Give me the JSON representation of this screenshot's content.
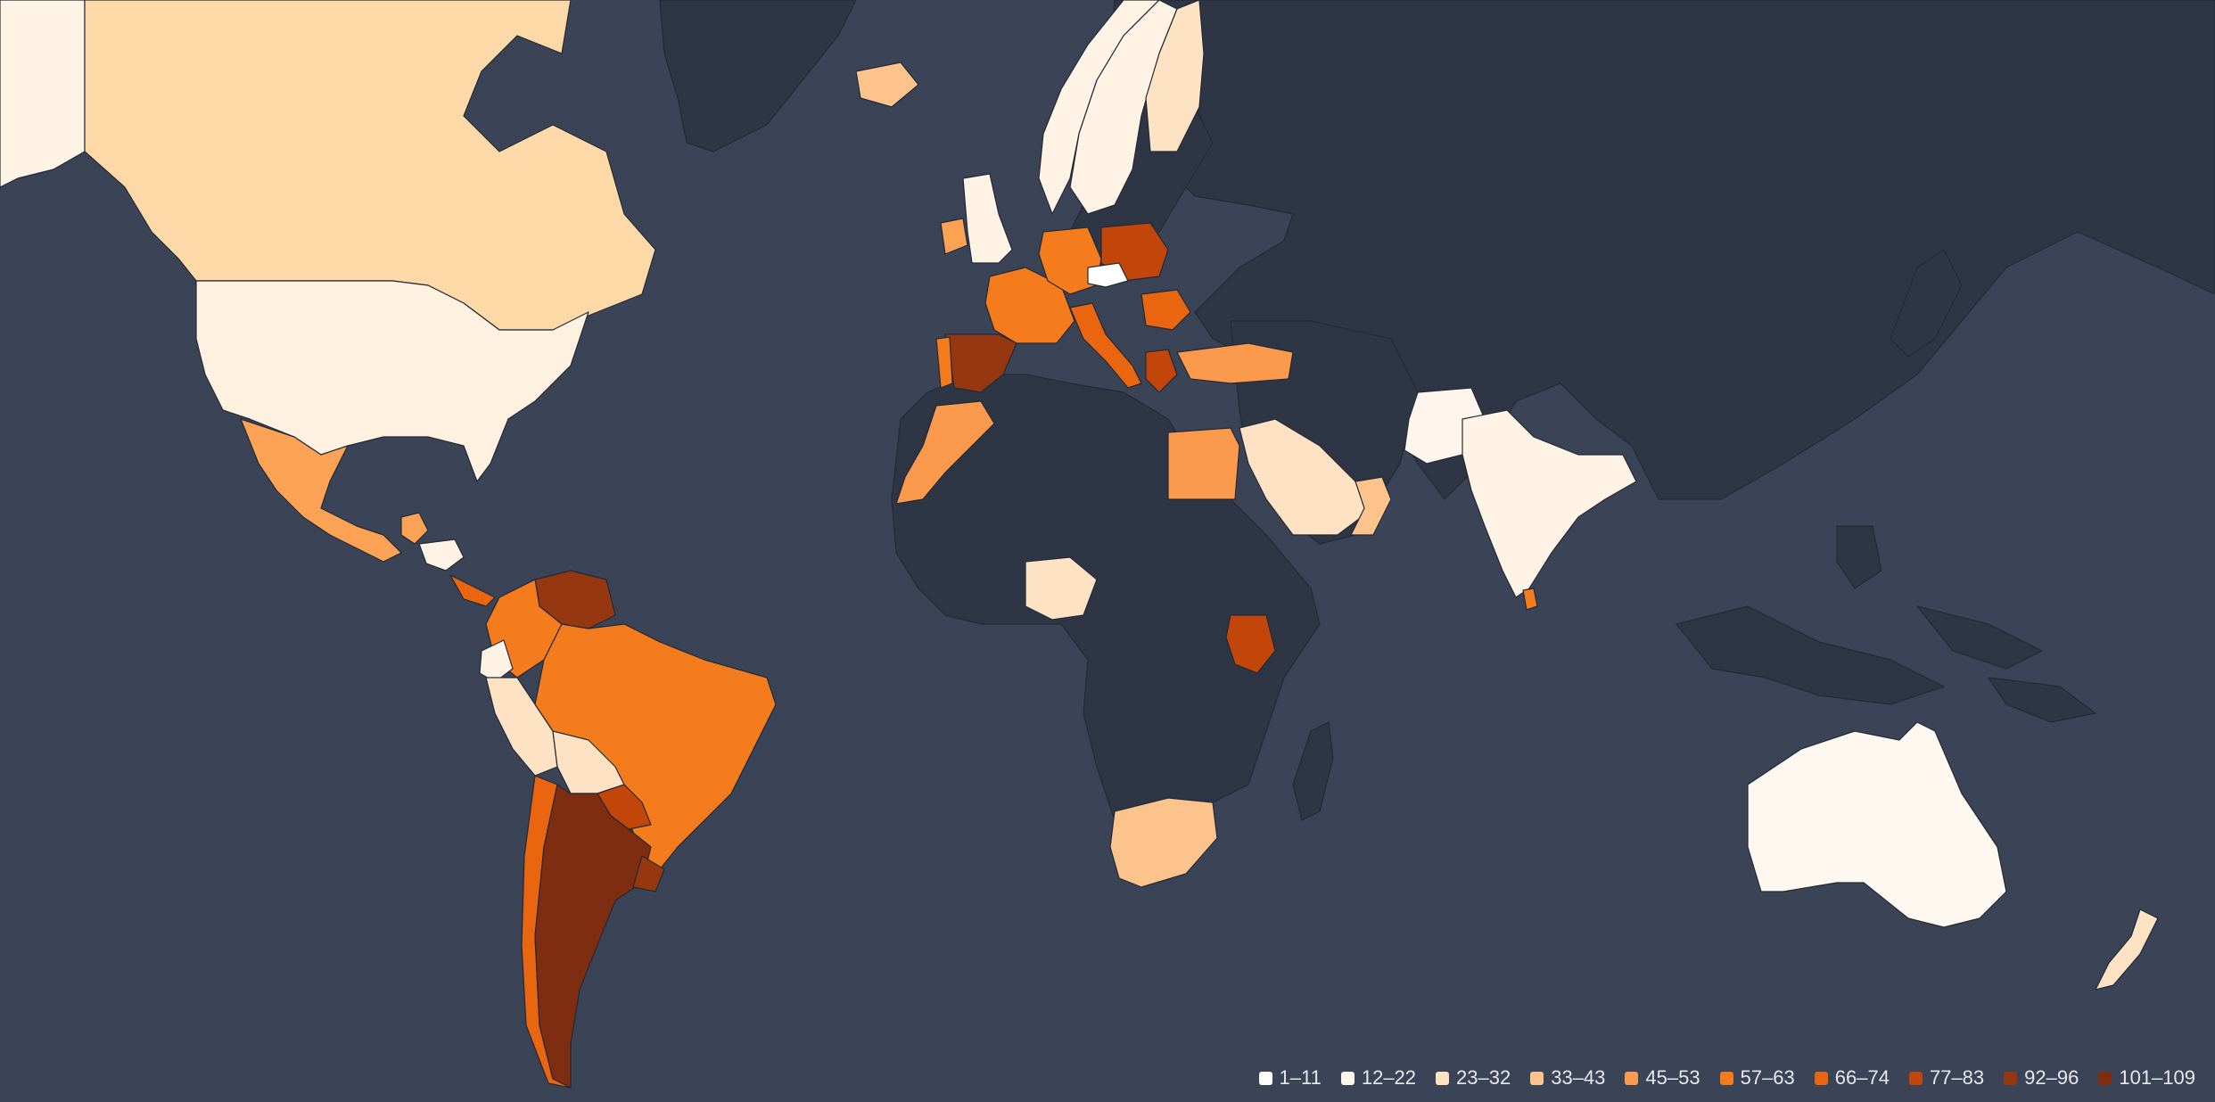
{
  "legend": {
    "items": [
      {
        "label": "1–11",
        "color": "#ffffff"
      },
      {
        "label": "12–22",
        "color": "#fef6ec"
      },
      {
        "label": "23–32",
        "color": "#fde3c3"
      },
      {
        "label": "33–43",
        "color": "#fdc38c"
      },
      {
        "label": "45–53",
        "color": "#fb9a4d"
      },
      {
        "label": "57–63",
        "color": "#f57c1c"
      },
      {
        "label": "66–74",
        "color": "#e9650f"
      },
      {
        "label": "77–83",
        "color": "#c2460a"
      },
      {
        "label": "92–96",
        "color": "#953711"
      },
      {
        "label": "101–109",
        "color": "#7f2d11"
      }
    ]
  },
  "map": {
    "ocean_color": "#3a4456",
    "no_data_color": "#2e3646",
    "regions": [
      {
        "name": "north-america-canada",
        "color": "#fdd9a8"
      },
      {
        "name": "alaska",
        "color": "#fef3e4"
      },
      {
        "name": "united-states",
        "color": "#fef1e0"
      },
      {
        "name": "mexico",
        "color": "#fba255"
      },
      {
        "name": "guatemala",
        "color": "#fba255"
      },
      {
        "name": "honduras",
        "color": "#fef3e4"
      },
      {
        "name": "costa-rica-panama",
        "color": "#e9650f"
      },
      {
        "name": "venezuela",
        "color": "#953711"
      },
      {
        "name": "colombia",
        "color": "#f57c1c"
      },
      {
        "name": "ecuador",
        "color": "#fef3e4"
      },
      {
        "name": "peru",
        "color": "#fde3c3"
      },
      {
        "name": "brazil",
        "color": "#f57c1c"
      },
      {
        "name": "bolivia",
        "color": "#fde3c3"
      },
      {
        "name": "paraguay",
        "color": "#c2460a"
      },
      {
        "name": "argentina",
        "color": "#7f2d11"
      },
      {
        "name": "chile",
        "color": "#e9650f"
      },
      {
        "name": "uruguay",
        "color": "#953711"
      },
      {
        "name": "iceland",
        "color": "#fdc38c"
      },
      {
        "name": "norway",
        "color": "#fef3e4"
      },
      {
        "name": "sweden",
        "color": "#fef3e4"
      },
      {
        "name": "finland",
        "color": "#fde3c3"
      },
      {
        "name": "united-kingdom",
        "color": "#fef3e4"
      },
      {
        "name": "ireland",
        "color": "#fba255"
      },
      {
        "name": "france",
        "color": "#f57c1c"
      },
      {
        "name": "spain",
        "color": "#953711"
      },
      {
        "name": "portugal",
        "color": "#f57c1c"
      },
      {
        "name": "germany",
        "color": "#f57c1c"
      },
      {
        "name": "poland",
        "color": "#c2460a"
      },
      {
        "name": "italy",
        "color": "#e9650f"
      },
      {
        "name": "czechia",
        "color": "#ffffff"
      },
      {
        "name": "romania",
        "color": "#e9650f"
      },
      {
        "name": "greece",
        "color": "#c2460a"
      },
      {
        "name": "turkey",
        "color": "#fb9a4d"
      },
      {
        "name": "morocco",
        "color": "#fb9a4d"
      },
      {
        "name": "egypt",
        "color": "#fb9a4d"
      },
      {
        "name": "saudi-arabia",
        "color": "#fde3c3"
      },
      {
        "name": "uae-oman",
        "color": "#fdc38c"
      },
      {
        "name": "nigeria",
        "color": "#fde3c3"
      },
      {
        "name": "kenya",
        "color": "#c2460a"
      },
      {
        "name": "south-africa",
        "color": "#fdc38c"
      },
      {
        "name": "india",
        "color": "#fef3e4"
      },
      {
        "name": "pakistan",
        "color": "#fef6ec"
      },
      {
        "name": "sri-lanka",
        "color": "#f57c1c"
      },
      {
        "name": "australia",
        "color": "#fef8f0"
      },
      {
        "name": "new-zealand",
        "color": "#fde3c3"
      }
    ]
  }
}
